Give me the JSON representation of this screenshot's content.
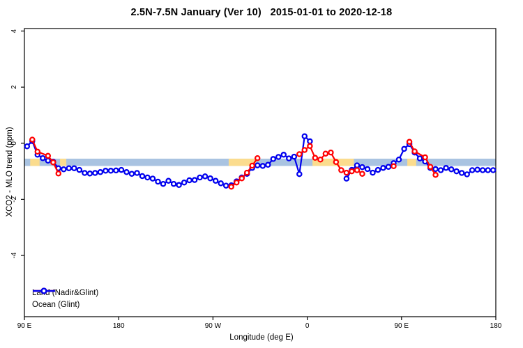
{
  "chart": {
    "title": "2.5N-7.5N January (Ver 10)   2015-01-01 to 2020-12-18"
  },
  "chart_data": {
    "type": "line",
    "title": "2.5N-7.5N January (Ver 10)   2015-01-01 to 2020-12-18",
    "xlabel": "Longitude (deg E)",
    "ylabel": "XCO2 - MLO trend (ppm)",
    "xlim": [
      90,
      540
    ],
    "ylim": [
      -6.2,
      4.1
    ],
    "grid": false,
    "legend_position": "bottom-left-inside",
    "x_ticks": [
      {
        "value": 90,
        "label": "90 E"
      },
      {
        "value": 180,
        "label": "180"
      },
      {
        "value": 270,
        "label": "90 W"
      },
      {
        "value": 360,
        "label": "0"
      },
      {
        "value": 450,
        "label": "90 E"
      },
      {
        "value": 540,
        "label": "180"
      }
    ],
    "y_ticks": [
      {
        "value": -4,
        "label": "-4"
      },
      {
        "value": -2,
        "label": "-2"
      },
      {
        "value": 0,
        "label": "0"
      },
      {
        "value": 2,
        "label": "2"
      },
      {
        "value": 4,
        "label": "4"
      }
    ],
    "band": {
      "description": "horizontal reference stripe; light blue over ocean longitudes, orange over land longitudes",
      "value_top": -0.55,
      "value_bottom": -0.81,
      "ocean_color": "#a9c3e1",
      "land_color": "#fbdc8e",
      "land_segments": [
        [
          95.5,
          104.5
        ],
        [
          124,
          130
        ],
        [
          285,
          311
        ],
        [
          365,
          404.5
        ],
        [
          455.5,
          464
        ]
      ]
    },
    "series": [
      {
        "name": "Land (Nadir&Glint)",
        "color": "#ff0000",
        "marker": "open-circle",
        "segments": [
          [
            [
              97.5,
              0.13
            ],
            [
              102.5,
              -0.3
            ],
            [
              112.5,
              -0.45
            ],
            [
              117.5,
              -0.68
            ],
            [
              122.5,
              -1.08
            ]
          ],
          [
            [
              287.5,
              -1.55
            ],
            [
              292.5,
              -1.4
            ],
            [
              297.5,
              -1.25
            ],
            [
              302.5,
              -1.05
            ],
            [
              307.5,
              -0.8
            ],
            [
              312.5,
              -0.53
            ]
          ],
          [
            [
              352.5,
              -0.39
            ],
            [
              357.5,
              -0.24
            ],
            [
              362.5,
              -0.1
            ],
            [
              367.5,
              -0.52
            ],
            [
              372.5,
              -0.58
            ],
            [
              377.5,
              -0.37
            ],
            [
              382.5,
              -0.33
            ],
            [
              387.5,
              -0.67
            ],
            [
              392.5,
              -0.96
            ],
            [
              397.5,
              -1.05
            ],
            [
              402.5,
              -1.0
            ],
            [
              407.5,
              -0.96
            ],
            [
              412.5,
              -1.09
            ]
          ],
          [
            [
              442.5,
              -0.82
            ]
          ],
          [
            [
              457.5,
              0.05
            ],
            [
              462.5,
              -0.29
            ],
            [
              472.5,
              -0.5
            ],
            [
              477.5,
              -0.84
            ],
            [
              482.5,
              -1.13
            ]
          ]
        ]
      },
      {
        "name": "Ocean (Glint)",
        "color": "#0000ee",
        "marker": "open-circle",
        "segments": [
          [
            [
              92.5,
              -0.11
            ],
            [
              97.5,
              0.08
            ],
            [
              102.5,
              -0.41
            ],
            [
              107.5,
              -0.53
            ],
            [
              112.5,
              -0.62
            ],
            [
              117.5,
              -0.66
            ],
            [
              122.5,
              -0.89
            ],
            [
              127.5,
              -0.93
            ],
            [
              132.5,
              -0.89
            ],
            [
              137.5,
              -0.89
            ],
            [
              142.5,
              -0.95
            ],
            [
              147.5,
              -1.06
            ],
            [
              152.5,
              -1.08
            ],
            [
              157.5,
              -1.06
            ],
            [
              162.5,
              -1.03
            ],
            [
              167.5,
              -0.98
            ],
            [
              172.5,
              -0.98
            ],
            [
              177.5,
              -0.97
            ],
            [
              182.5,
              -0.95
            ],
            [
              187.5,
              -1.03
            ],
            [
              192.5,
              -1.09
            ],
            [
              197.5,
              -1.06
            ],
            [
              202.5,
              -1.17
            ],
            [
              207.5,
              -1.22
            ],
            [
              212.5,
              -1.26
            ],
            [
              217.5,
              -1.37
            ],
            [
              222.5,
              -1.45
            ],
            [
              227.5,
              -1.34
            ],
            [
              232.5,
              -1.45
            ],
            [
              237.5,
              -1.49
            ],
            [
              242.5,
              -1.4
            ],
            [
              247.5,
              -1.32
            ],
            [
              252.5,
              -1.31
            ],
            [
              257.5,
              -1.22
            ],
            [
              262.5,
              -1.18
            ],
            [
              267.5,
              -1.25
            ],
            [
              272.5,
              -1.34
            ],
            [
              277.5,
              -1.43
            ],
            [
              282.5,
              -1.51
            ],
            [
              287.5,
              -1.5
            ],
            [
              292.5,
              -1.36
            ],
            [
              297.5,
              -1.22
            ],
            [
              302.5,
              -1.09
            ],
            [
              307.5,
              -0.88
            ],
            [
              312.5,
              -0.79
            ],
            [
              317.5,
              -0.81
            ],
            [
              322.5,
              -0.77
            ],
            [
              327.5,
              -0.56
            ],
            [
              332.5,
              -0.49
            ],
            [
              337.5,
              -0.41
            ],
            [
              342.5,
              -0.54
            ],
            [
              347.5,
              -0.48
            ],
            [
              352.5,
              -1.1
            ],
            [
              357.5,
              0.25
            ],
            [
              362.5,
              0.07
            ]
          ],
          [
            [
              397.5,
              -1.26
            ],
            [
              402.5,
              -0.95
            ],
            [
              407.5,
              -0.79
            ],
            [
              412.5,
              -0.85
            ],
            [
              417.5,
              -0.92
            ],
            [
              422.5,
              -1.05
            ],
            [
              427.5,
              -0.95
            ],
            [
              432.5,
              -0.88
            ],
            [
              437.5,
              -0.84
            ],
            [
              442.5,
              -0.71
            ],
            [
              447.5,
              -0.58
            ],
            [
              452.5,
              -0.2
            ],
            [
              457.5,
              -0.03
            ],
            [
              462.5,
              -0.33
            ],
            [
              467.5,
              -0.54
            ],
            [
              472.5,
              -0.65
            ],
            [
              477.5,
              -0.88
            ],
            [
              482.5,
              -0.92
            ],
            [
              487.5,
              -0.96
            ],
            [
              492.5,
              -0.88
            ],
            [
              497.5,
              -0.93
            ],
            [
              502.5,
              -1.0
            ],
            [
              507.5,
              -1.06
            ],
            [
              512.5,
              -1.11
            ],
            [
              517.5,
              -0.96
            ],
            [
              522.5,
              -0.94
            ],
            [
              527.5,
              -0.96
            ],
            [
              532.5,
              -0.96
            ],
            [
              537.5,
              -0.96
            ]
          ]
        ]
      }
    ]
  },
  "legend": {
    "items": [
      {
        "label": "Land (Nadir&Glint)",
        "color": "#ff0000"
      },
      {
        "label": "Ocean (Glint)",
        "color": "#0000ee"
      }
    ]
  }
}
